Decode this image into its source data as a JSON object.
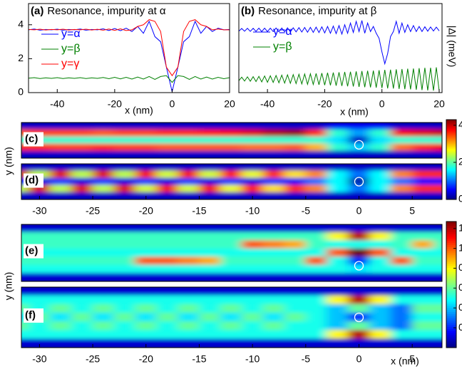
{
  "chart_data": [
    {
      "type": "line",
      "label": "(a)",
      "title": "Resonance, impurity at α",
      "xlabel": "x (nm)",
      "xlim": [
        -50,
        20
      ],
      "xticks": [
        -40,
        -20,
        0,
        20
      ],
      "ylim": [
        0,
        5.25
      ],
      "yticks": [
        0,
        2,
        4
      ],
      "legend": "upper left",
      "x": [
        -50,
        -48,
        -46,
        -44,
        -42,
        -40,
        -38,
        -36,
        -34,
        -32,
        -30,
        -28,
        -26,
        -24,
        -22,
        -20,
        -18,
        -16,
        -14,
        -12,
        -10,
        -8,
        -6,
        -4,
        -2,
        0,
        2,
        4,
        6,
        8,
        10,
        12,
        14,
        16,
        18,
        20
      ],
      "series": [
        {
          "name": "y=α",
          "color": "#0000ff",
          "values": [
            3.7,
            3.75,
            3.68,
            3.72,
            3.7,
            3.74,
            3.68,
            3.72,
            3.7,
            3.75,
            3.68,
            3.72,
            3.7,
            3.76,
            3.66,
            3.78,
            3.65,
            3.8,
            3.6,
            3.9,
            3.5,
            4.2,
            3.3,
            3.0,
            1.5,
            0.05,
            1.5,
            3.0,
            3.3,
            4.2,
            3.5,
            3.9,
            3.6,
            3.8,
            3.7,
            3.72
          ]
        },
        {
          "name": "y=β",
          "color": "#008000",
          "values": [
            0.85,
            0.88,
            0.83,
            0.87,
            0.84,
            0.88,
            0.83,
            0.87,
            0.84,
            0.88,
            0.83,
            0.87,
            0.84,
            0.89,
            0.82,
            0.9,
            0.81,
            0.9,
            0.8,
            0.92,
            0.8,
            0.95,
            0.78,
            0.95,
            1.0,
            0.6,
            1.0,
            0.95,
            0.78,
            0.95,
            0.8,
            0.92,
            0.8,
            0.9,
            0.82,
            0.88
          ]
        },
        {
          "name": "y=γ",
          "color": "#ff0000",
          "values": [
            3.72,
            3.7,
            3.74,
            3.69,
            3.72,
            3.7,
            3.74,
            3.69,
            3.72,
            3.7,
            3.74,
            3.69,
            3.73,
            3.68,
            3.75,
            3.67,
            3.76,
            3.66,
            3.7,
            3.9,
            4.0,
            4.3,
            4.2,
            3.6,
            1.5,
            1.0,
            1.5,
            3.6,
            4.2,
            4.3,
            4.0,
            3.9,
            3.7,
            3.75,
            3.7,
            3.7
          ]
        }
      ]
    },
    {
      "type": "line",
      "label": "(b)",
      "title": "Resonance, impurity at β",
      "xlabel": "x (nm)",
      "ylabel": "|Δ| (meV)",
      "xlim": [
        -50,
        21
      ],
      "xticks": [
        -40,
        -20,
        0,
        20
      ],
      "ylim": [
        0,
        5.25
      ],
      "legend": "upper left",
      "x": [
        -50,
        -49,
        -48,
        -47,
        -46,
        -45,
        -44,
        -43,
        -42,
        -41,
        -40,
        -39,
        -38,
        -37,
        -36,
        -35,
        -34,
        -33,
        -32,
        -31,
        -30,
        -29,
        -28,
        -27,
        -26,
        -25,
        -24,
        -23,
        -22,
        -21,
        -20,
        -19,
        -18,
        -17,
        -16,
        -15,
        -14,
        -13,
        -12,
        -11,
        -10,
        -9,
        -8,
        -7,
        -6,
        -5,
        -4,
        -3,
        -2,
        -1,
        0,
        1,
        2,
        3,
        4,
        5,
        6,
        7,
        8,
        9,
        10,
        11,
        12,
        13,
        14,
        15,
        16,
        17,
        18,
        19,
        20
      ],
      "series": [
        {
          "name": "y=α",
          "color": "#0000ff",
          "values": [
            3.62,
            3.78,
            3.62,
            3.79,
            3.61,
            3.79,
            3.61,
            3.8,
            3.6,
            3.8,
            3.6,
            3.8,
            3.6,
            3.81,
            3.59,
            3.81,
            3.59,
            3.82,
            3.58,
            3.82,
            3.58,
            3.83,
            3.57,
            3.84,
            3.56,
            3.85,
            3.55,
            3.86,
            3.54,
            3.88,
            3.52,
            3.9,
            3.5,
            3.92,
            3.48,
            3.95,
            3.45,
            4.0,
            3.5,
            4.1,
            3.55,
            4.2,
            3.6,
            4.25,
            3.5,
            4.1,
            3.6,
            3.9,
            3.5,
            3.2,
            2.4,
            1.7,
            2.3,
            3.3,
            3.6,
            4.2,
            3.5,
            4.1,
            3.55,
            4.0,
            3.6,
            3.95,
            3.6,
            3.9,
            3.6,
            3.88,
            3.62,
            3.87,
            3.63,
            3.86,
            3.64
          ]
        },
        {
          "name": "y=β",
          "color": "#008000",
          "values": [
            0.7,
            0.91,
            0.68,
            0.93,
            0.67,
            0.94,
            0.65,
            0.96,
            0.63,
            0.98,
            0.61,
            0.99,
            0.6,
            1.01,
            0.58,
            1.03,
            0.56,
            1.05,
            0.55,
            1.06,
            0.53,
            1.08,
            0.51,
            1.1,
            0.49,
            1.11,
            0.48,
            1.13,
            0.46,
            1.15,
            0.44,
            1.17,
            0.43,
            1.18,
            0.41,
            1.2,
            0.39,
            1.22,
            0.37,
            1.23,
            0.36,
            1.25,
            0.34,
            1.27,
            0.32,
            1.29,
            0.31,
            1.3,
            0.29,
            1.32,
            0.27,
            1.34,
            0.25,
            1.35,
            0.24,
            1.37,
            0.22,
            1.39,
            0.2,
            1.41,
            0.19,
            1.42,
            0.17,
            1.44,
            0.15,
            1.46,
            0.13,
            1.47,
            0.12,
            1.49,
            0.1
          ]
        }
      ]
    },
    {
      "type": "heatmap",
      "label": "(c)",
      "ylabel": "y (nm)",
      "cmap": "jet",
      "clim": [
        0,
        4.3
      ],
      "colorbar_ticks": [
        0,
        2,
        4
      ],
      "xlim": [
        -31.7,
        7.8
      ],
      "impurity": {
        "x": 0,
        "y": -0.5
      },
      "x": [
        -32,
        -30,
        -28,
        -26,
        -24,
        -22,
        -20,
        -18,
        -16,
        -14,
        -12,
        -10,
        -8,
        -6,
        -4,
        -2,
        0,
        2,
        4,
        6,
        8
      ],
      "y": [
        1.6,
        0.8,
        0,
        -0.8,
        -1.6
      ],
      "z": [
        [
          0.3,
          0.3,
          0.3,
          0.3,
          0.3,
          0.3,
          0.3,
          0.3,
          0.3,
          0.3,
          0.3,
          0.3,
          0.3,
          0.3,
          0.3,
          0.5,
          0.5,
          0.5,
          0.3,
          0.3,
          0.3
        ],
        [
          3.4,
          3.5,
          3.5,
          3.5,
          3.4,
          3.5,
          3.5,
          3.6,
          3.6,
          3.7,
          3.8,
          3.9,
          4.1,
          4.2,
          3.6,
          1.8,
          1.2,
          1.8,
          3.8,
          3.9,
          4.0
        ],
        [
          1.8,
          1.8,
          1.8,
          1.8,
          1.8,
          1.8,
          1.8,
          1.8,
          1.8,
          1.8,
          1.8,
          1.8,
          1.8,
          1.8,
          1.8,
          1.5,
          0.3,
          1.5,
          1.8,
          1.8,
          1.8
        ],
        [
          3.6,
          3.6,
          3.5,
          3.5,
          3.6,
          3.5,
          3.5,
          3.4,
          3.4,
          3.4,
          3.4,
          3.3,
          3.3,
          3.4,
          3.0,
          1.8,
          1.4,
          1.8,
          3.3,
          3.6,
          3.8
        ],
        [
          0.3,
          0.3,
          0.3,
          0.3,
          0.3,
          0.3,
          0.3,
          0.3,
          0.3,
          0.3,
          0.3,
          0.3,
          0.3,
          0.3,
          0.3,
          0.3,
          0.3,
          0.3,
          0.3,
          0.3,
          0.3
        ]
      ]
    },
    {
      "type": "heatmap",
      "label": "(d)",
      "cmap": "jet",
      "clim": [
        0,
        4.3
      ],
      "xlim": [
        -31.7,
        7.8
      ],
      "xticks": [
        -30,
        -25,
        -20,
        -15,
        -10,
        -5,
        0,
        5
      ],
      "impurity": {
        "x": 0,
        "y": 0
      },
      "x": [
        -32,
        -30,
        -28,
        -26,
        -24,
        -22,
        -20,
        -18,
        -16,
        -14,
        -12,
        -10,
        -8,
        -6,
        -4,
        -2,
        0,
        2,
        4,
        6,
        8
      ],
      "y": [
        1.6,
        0.8,
        0,
        -0.8,
        -1.6
      ],
      "z": [
        [
          0.3,
          0.3,
          0.3,
          0.3,
          0.3,
          0.3,
          0.3,
          0.3,
          0.3,
          0.3,
          0.3,
          0.3,
          0.3,
          0.3,
          0.3,
          0.3,
          0.3,
          0.3,
          0.3,
          0.3,
          0.3
        ],
        [
          3.9,
          2.4,
          3.9,
          2.4,
          3.9,
          2.4,
          3.8,
          2.5,
          3.8,
          2.5,
          3.7,
          2.6,
          3.6,
          2.8,
          3.2,
          1.6,
          1.0,
          1.6,
          3.2,
          3.6,
          3.6
        ],
        [
          0.8,
          0.4,
          0.8,
          0.4,
          0.8,
          0.4,
          0.8,
          0.4,
          0.8,
          0.4,
          0.8,
          0.4,
          0.8,
          0.5,
          1.0,
          1.6,
          0.2,
          1.6,
          1.0,
          0.6,
          0.6
        ],
        [
          2.4,
          3.9,
          2.4,
          3.9,
          2.4,
          3.9,
          2.5,
          3.8,
          2.5,
          3.8,
          2.6,
          3.7,
          2.8,
          3.6,
          3.2,
          1.6,
          1.0,
          1.6,
          3.2,
          3.6,
          3.6
        ],
        [
          0.3,
          0.3,
          0.3,
          0.3,
          0.3,
          0.3,
          0.3,
          0.3,
          0.3,
          0.3,
          0.3,
          0.3,
          0.3,
          0.3,
          0.3,
          0.3,
          0.3,
          0.3,
          0.3,
          0.3,
          0.3
        ]
      ]
    },
    {
      "type": "heatmap",
      "label": "(e)",
      "ylabel": "y (nm)",
      "cmap": "jet",
      "clim": [
        0,
        1.27
      ],
      "colorbar_ticks": [
        0.2,
        0.4,
        0.6,
        0.8,
        1,
        1.2
      ],
      "xlim": [
        -31.7,
        7.8
      ],
      "impurity": {
        "x": 0,
        "y": -1.26
      },
      "x": [
        -32,
        -30,
        -28,
        -26,
        -24,
        -22,
        -20,
        -18,
        -16,
        -14,
        -12,
        -10,
        -8,
        -6,
        -4,
        -2,
        0,
        2,
        4,
        6,
        8
      ],
      "y": [
        2.4,
        1.6,
        0.8,
        0,
        -0.8,
        -1.6,
        -2.4
      ],
      "z": [
        [
          0.1,
          0.1,
          0.1,
          0.1,
          0.1,
          0.1,
          0.1,
          0.1,
          0.1,
          0.1,
          0.1,
          0.1,
          0.1,
          0.1,
          0.1,
          0.1,
          0.1,
          0.1,
          0.1,
          0.1,
          0.1
        ],
        [
          0.55,
          0.55,
          0.55,
          0.55,
          0.55,
          0.55,
          0.55,
          0.55,
          0.55,
          0.55,
          0.55,
          0.55,
          0.55,
          0.55,
          0.55,
          0.8,
          1.2,
          0.8,
          0.55,
          0.55,
          0.55
        ],
        [
          0.55,
          0.55,
          0.55,
          0.55,
          0.55,
          0.55,
          0.55,
          0.55,
          0.55,
          0.55,
          0.55,
          1.0,
          0.95,
          0.9,
          0.55,
          0.5,
          0.5,
          0.5,
          0.55,
          0.9,
          0.55
        ],
        [
          0.5,
          0.5,
          0.5,
          0.5,
          0.5,
          0.5,
          0.5,
          0.5,
          0.5,
          0.5,
          0.5,
          0.5,
          0.5,
          0.5,
          0.5,
          1.0,
          1.3,
          1.0,
          0.5,
          0.5,
          0.5
        ],
        [
          0.55,
          0.55,
          0.55,
          0.55,
          0.55,
          0.55,
          1.0,
          1.0,
          0.95,
          0.9,
          0.55,
          0.55,
          0.55,
          0.55,
          1.0,
          0.5,
          0.2,
          0.5,
          1.0,
          0.55,
          0.55
        ],
        [
          0.5,
          0.5,
          0.5,
          0.5,
          0.5,
          0.5,
          0.5,
          0.5,
          0.5,
          0.5,
          0.5,
          0.5,
          0.5,
          0.5,
          0.5,
          0.5,
          0.45,
          0.5,
          0.5,
          0.5,
          0.5
        ],
        [
          0.1,
          0.1,
          0.1,
          0.1,
          0.1,
          0.1,
          0.1,
          0.1,
          0.1,
          0.1,
          0.1,
          0.1,
          0.1,
          0.1,
          0.1,
          0.1,
          0.1,
          0.1,
          0.1,
          0.1,
          0.1
        ]
      ]
    },
    {
      "type": "heatmap",
      "label": "(f)",
      "xlabel": "x (nm)",
      "cmap": "jet",
      "clim": [
        0,
        1.27
      ],
      "xlim": [
        -31.7,
        7.8
      ],
      "xticks": [
        -30,
        -25,
        -20,
        -15,
        -10,
        -5,
        0,
        5
      ],
      "impurity": {
        "x": 0,
        "y": 0
      },
      "x": [
        -32,
        -30,
        -28,
        -26,
        -24,
        -22,
        -20,
        -18,
        -16,
        -14,
        -12,
        -10,
        -8,
        -6,
        -4,
        -2,
        0,
        2,
        4,
        6,
        8
      ],
      "y": [
        2.4,
        1.6,
        0.8,
        0,
        -0.8,
        -1.6,
        -2.4
      ],
      "z": [
        [
          0.1,
          0.1,
          0.1,
          0.1,
          0.1,
          0.1,
          0.1,
          0.1,
          0.1,
          0.1,
          0.1,
          0.1,
          0.1,
          0.1,
          0.1,
          0.1,
          0.1,
          0.1,
          0.1,
          0.1,
          0.1
        ],
        [
          0.5,
          0.5,
          0.5,
          0.5,
          0.5,
          0.5,
          0.5,
          0.5,
          0.5,
          0.5,
          0.5,
          0.5,
          0.5,
          0.5,
          0.5,
          0.8,
          1.2,
          0.8,
          0.5,
          0.5,
          0.5
        ],
        [
          0.6,
          0.5,
          0.6,
          0.5,
          0.6,
          0.5,
          0.6,
          0.5,
          0.6,
          0.5,
          0.6,
          0.5,
          0.6,
          0.5,
          0.5,
          0.4,
          0.6,
          0.4,
          0.3,
          0.6,
          0.6
        ],
        [
          0.45,
          0.6,
          0.45,
          0.6,
          0.45,
          0.6,
          0.45,
          0.6,
          0.45,
          0.6,
          0.45,
          0.6,
          0.45,
          0.6,
          0.5,
          0.4,
          0.2,
          0.4,
          0.3,
          0.5,
          0.5
        ],
        [
          0.6,
          0.5,
          0.6,
          0.5,
          0.6,
          0.5,
          0.6,
          0.5,
          0.6,
          0.5,
          0.6,
          0.5,
          0.6,
          0.5,
          0.5,
          0.4,
          0.6,
          0.4,
          0.3,
          0.6,
          0.6
        ],
        [
          0.5,
          0.5,
          0.5,
          0.5,
          0.5,
          0.5,
          0.5,
          0.5,
          0.5,
          0.5,
          0.5,
          0.5,
          0.5,
          0.5,
          0.5,
          0.8,
          1.2,
          0.8,
          0.5,
          0.5,
          0.5
        ],
        [
          0.1,
          0.1,
          0.1,
          0.1,
          0.1,
          0.1,
          0.1,
          0.1,
          0.1,
          0.1,
          0.1,
          0.1,
          0.1,
          0.1,
          0.1,
          0.1,
          0.1,
          0.1,
          0.1,
          0.1,
          0.1
        ]
      ]
    }
  ]
}
